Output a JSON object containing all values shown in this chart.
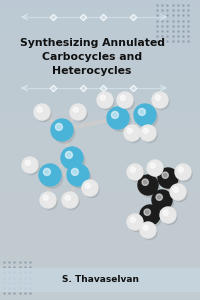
{
  "title_line1": "Synthesizing Annulated",
  "title_line2": "Carbocycles and",
  "title_line3": "Heterocycles",
  "author": "S. Thavaselvan",
  "bg_color": "#bccad4",
  "title_fontsize": 7.8,
  "author_fontsize": 6.5,
  "dot_color": "#8a9aaa",
  "cyan": "#4ab4d8",
  "white_ball": "#e8e8e8",
  "black_ball": "#1c1c1c",
  "stick_color": "#cccccc",
  "deco_line_color": "#d0dde6",
  "arrow_color": "#d8e8f0"
}
